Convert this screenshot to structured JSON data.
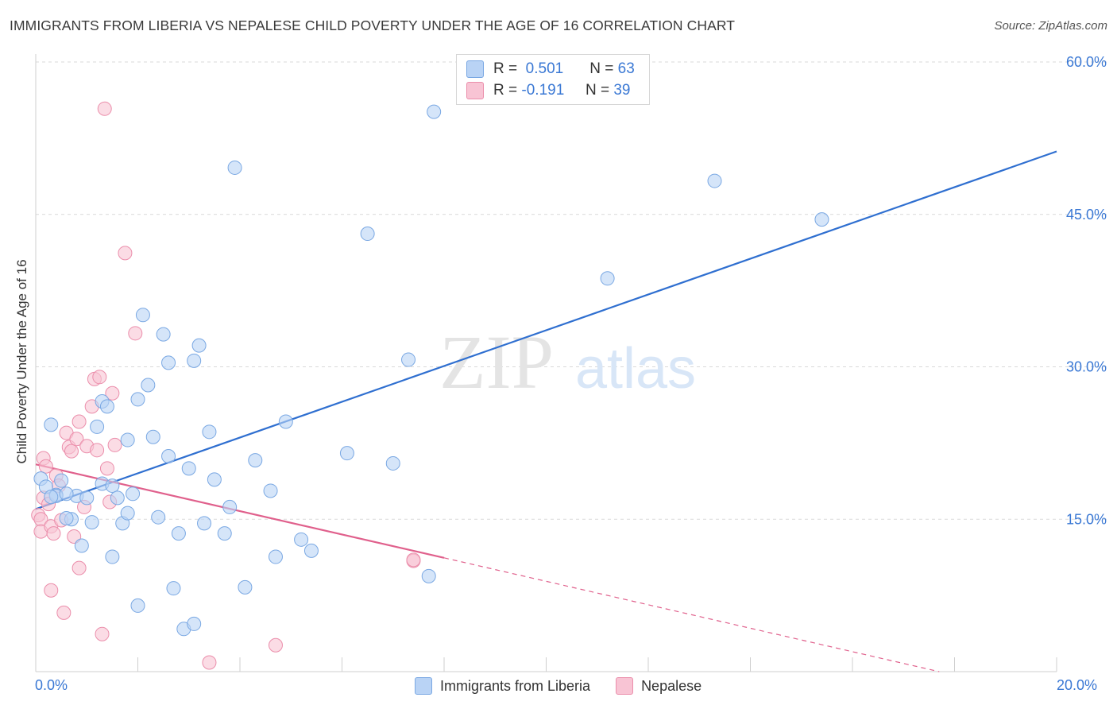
{
  "title": "IMMIGRANTS FROM LIBERIA VS NEPALESE CHILD POVERTY UNDER THE AGE OF 16 CORRELATION CHART",
  "source": "Source: ZipAtlas.com",
  "watermark": {
    "zip": "ZIP",
    "atlas": "atlas"
  },
  "legend": {
    "rows": [
      {
        "r_label": "R =",
        "r_value": "0.501",
        "n_label": "N =",
        "n_value": "63"
      },
      {
        "r_label": "R =",
        "r_value": "-0.191",
        "n_label": "N =",
        "n_value": "39"
      }
    ]
  },
  "bottom_legend": {
    "liberia": "Immigrants from Liberia",
    "nepalese": "Nepalese"
  },
  "x_axis_labels": {
    "min": "0.0%",
    "max": "20.0%"
  },
  "colors": {
    "liberia_fill": "#b9d3f5",
    "liberia_stroke": "#7aa8e3",
    "liberia_line": "#2f6fd0",
    "nepalese_fill": "#f8c4d4",
    "nepalese_stroke": "#eb8eab",
    "nepalese_line": "#e0608c",
    "axis_label": "#3a78d4",
    "grid": "#d9d9d9"
  },
  "chart_data": {
    "type": "scatter",
    "title": "IMMIGRANTS FROM LIBERIA VS NEPALESE CHILD POVERTY UNDER THE AGE OF 16 CORRELATION CHART",
    "xlabel": "",
    "ylabel": "Child Poverty Under the Age of 16",
    "xlim": [
      0,
      20
    ],
    "ylim": [
      0,
      60
    ],
    "y_ticks": [
      15,
      30,
      45,
      60
    ],
    "y_tick_labels": [
      "15.0%",
      "30.0%",
      "45.0%",
      "60.0%"
    ],
    "grid": true,
    "legend_position": "top-center",
    "series": [
      {
        "name": "Immigrants from Liberia",
        "points": [
          [
            0.1,
            19.0
          ],
          [
            0.2,
            18.2
          ],
          [
            0.3,
            24.3
          ],
          [
            0.4,
            17.4
          ],
          [
            0.5,
            18.8
          ],
          [
            0.4,
            17.3
          ],
          [
            0.7,
            15.0
          ],
          [
            0.8,
            17.3
          ],
          [
            0.9,
            12.4
          ],
          [
            1.0,
            17.1
          ],
          [
            1.1,
            14.7
          ],
          [
            1.2,
            24.1
          ],
          [
            1.3,
            26.6
          ],
          [
            1.4,
            26.1
          ],
          [
            1.3,
            18.5
          ],
          [
            1.5,
            18.3
          ],
          [
            1.5,
            11.3
          ],
          [
            1.6,
            17.1
          ],
          [
            1.7,
            14.6
          ],
          [
            1.8,
            15.6
          ],
          [
            1.8,
            22.8
          ],
          [
            1.9,
            17.5
          ],
          [
            2.0,
            26.8
          ],
          [
            2.0,
            6.5
          ],
          [
            2.1,
            35.1
          ],
          [
            2.2,
            28.2
          ],
          [
            2.3,
            23.1
          ],
          [
            2.4,
            15.2
          ],
          [
            2.5,
            33.2
          ],
          [
            2.6,
            30.4
          ],
          [
            2.6,
            21.2
          ],
          [
            2.7,
            8.2
          ],
          [
            2.8,
            13.6
          ],
          [
            2.9,
            4.2
          ],
          [
            3.0,
            20.0
          ],
          [
            3.1,
            30.6
          ],
          [
            3.1,
            4.7
          ],
          [
            3.2,
            32.1
          ],
          [
            3.3,
            14.6
          ],
          [
            3.4,
            23.6
          ],
          [
            3.5,
            18.9
          ],
          [
            3.7,
            13.6
          ],
          [
            3.8,
            16.2
          ],
          [
            3.9,
            49.6
          ],
          [
            4.1,
            8.3
          ],
          [
            4.3,
            20.8
          ],
          [
            4.6,
            17.8
          ],
          [
            4.7,
            11.3
          ],
          [
            4.9,
            24.6
          ],
          [
            5.2,
            13.0
          ],
          [
            5.4,
            11.9
          ],
          [
            6.1,
            21.5
          ],
          [
            6.5,
            43.1
          ],
          [
            7.0,
            20.5
          ],
          [
            7.3,
            30.7
          ],
          [
            7.7,
            9.4
          ],
          [
            7.8,
            55.1
          ],
          [
            11.2,
            38.7
          ],
          [
            13.3,
            48.3
          ],
          [
            15.4,
            44.5
          ],
          [
            0.3,
            17.2
          ],
          [
            0.6,
            17.5
          ],
          [
            0.6,
            15.1
          ]
        ]
      },
      {
        "name": "Nepalese",
        "points": [
          [
            0.05,
            15.4
          ],
          [
            0.1,
            15.0
          ],
          [
            0.1,
            13.8
          ],
          [
            0.15,
            21.0
          ],
          [
            0.15,
            17.1
          ],
          [
            0.2,
            20.2
          ],
          [
            0.25,
            16.5
          ],
          [
            0.3,
            14.3
          ],
          [
            0.3,
            8.0
          ],
          [
            0.35,
            13.6
          ],
          [
            0.4,
            19.3
          ],
          [
            0.45,
            18.3
          ],
          [
            0.5,
            14.9
          ],
          [
            0.55,
            5.8
          ],
          [
            0.6,
            23.5
          ],
          [
            0.65,
            22.1
          ],
          [
            0.7,
            21.7
          ],
          [
            0.75,
            13.3
          ],
          [
            0.8,
            22.9
          ],
          [
            0.85,
            10.2
          ],
          [
            0.85,
            24.6
          ],
          [
            0.95,
            16.2
          ],
          [
            1.0,
            22.2
          ],
          [
            1.1,
            26.1
          ],
          [
            1.15,
            28.8
          ],
          [
            1.2,
            21.8
          ],
          [
            1.25,
            29.0
          ],
          [
            1.3,
            3.7
          ],
          [
            1.35,
            55.4
          ],
          [
            1.4,
            20.0
          ],
          [
            1.45,
            16.7
          ],
          [
            1.5,
            27.4
          ],
          [
            1.55,
            22.3
          ],
          [
            1.75,
            41.2
          ],
          [
            1.95,
            33.3
          ],
          [
            3.4,
            0.9
          ],
          [
            4.7,
            2.6
          ],
          [
            7.4,
            10.9
          ],
          [
            7.4,
            11.0
          ]
        ]
      }
    ],
    "trend_lines": [
      {
        "series": "Immigrants from Liberia",
        "x": [
          0.0,
          20.0
        ],
        "y": [
          16.0,
          51.2
        ],
        "style": "solid"
      },
      {
        "series": "Nepalese",
        "x": [
          0.0,
          8.0
        ],
        "y": [
          20.4,
          11.2
        ],
        "style": "solid"
      },
      {
        "series": "Nepalese",
        "x": [
          8.0,
          17.7
        ],
        "y": [
          11.2,
          0.0
        ],
        "style": "dashed"
      }
    ]
  }
}
